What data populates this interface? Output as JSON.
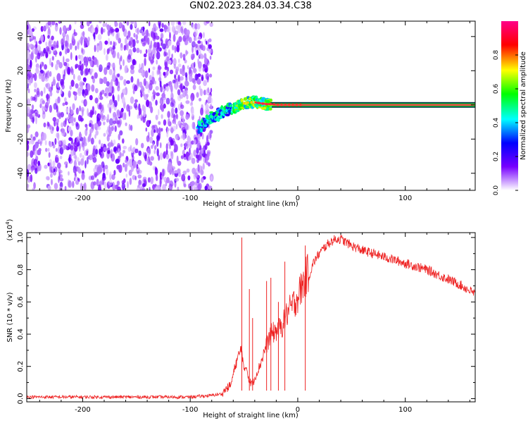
{
  "title": "GN02.2023.284.03.34.C38",
  "chart_data": [
    {
      "type": "heatmap",
      "name": "spectrogram",
      "xlabel": "Height of straight line (km)",
      "ylabel": "Frequency (Hz)",
      "xlim": [
        -252,
        165
      ],
      "ylim": [
        -50,
        49
      ],
      "xticks": [
        -200,
        -100,
        0,
        100
      ],
      "xtick_labels": [
        "-200",
        "-100",
        "0",
        "100"
      ],
      "yticks": [
        -40,
        -20,
        0,
        20,
        40
      ],
      "ytick_labels": [
        "-40",
        "-20",
        "0",
        "20",
        "40"
      ],
      "noise_region_x": [
        -252,
        -80
      ],
      "signal_track": {
        "x": [
          -90,
          -85,
          -80,
          -75,
          -70,
          -65,
          -60,
          -55,
          -50,
          -45,
          -40,
          -35,
          -30,
          -25,
          -20,
          -10,
          0,
          20,
          50,
          100,
          165
        ],
        "y": [
          -13,
          -10,
          -7,
          -6,
          -4,
          -3,
          -2,
          -1,
          1,
          1.5,
          1.5,
          1,
          0.5,
          0.5,
          0,
          0,
          0,
          0,
          0,
          0,
          0
        ]
      },
      "colorbar": {
        "label": "Normalized spectral amplitude",
        "range": [
          0,
          1
        ],
        "ticks": [
          0.0,
          0.2,
          0.4,
          0.6,
          0.8
        ],
        "tick_labels": [
          "0.0",
          "0.2",
          "0.4",
          "0.6",
          "0.8"
        ],
        "colors": [
          "#ffffff",
          "#7700ff",
          "#0000ff",
          "#00ffff",
          "#00ff00",
          "#ffff00",
          "#ff0000",
          "#ff0088"
        ]
      }
    },
    {
      "type": "line",
      "name": "snr",
      "xlabel": "Height of straight line (km)",
      "ylabel": "SNR (10 * v/v)",
      "scale_label": "(x10",
      "scale_exponent": "4",
      "scale_close": ")",
      "xlim": [
        -252,
        165
      ],
      "ylim": [
        -0.02,
        1.03
      ],
      "xticks": [
        -200,
        -100,
        0,
        100
      ],
      "xtick_labels": [
        "-200",
        "-100",
        "0",
        "100"
      ],
      "yticks": [
        0.0,
        0.2,
        0.4,
        0.6,
        0.8,
        1.0
      ],
      "ytick_labels": [
        "0.0",
        "0.2",
        "0.4",
        "0.6",
        "0.8",
        "1.0"
      ],
      "color": "#ee2222",
      "x": [
        -252,
        -200,
        -150,
        -100,
        -80,
        -70,
        -62,
        -58,
        -55,
        -52,
        -50,
        -48,
        -45,
        -42,
        -40,
        -35,
        -30,
        -25,
        -20,
        -15,
        -10,
        -5,
        0,
        5,
        10,
        15,
        20,
        25,
        30,
        35,
        40,
        45,
        50,
        60,
        70,
        80,
        90,
        100,
        110,
        120,
        130,
        140,
        150,
        160,
        165
      ],
      "y": [
        0.01,
        0.01,
        0.01,
        0.01,
        0.02,
        0.03,
        0.08,
        0.2,
        0.25,
        0.3,
        0.15,
        0.2,
        0.1,
        0.08,
        0.12,
        0.2,
        0.3,
        0.38,
        0.4,
        0.42,
        0.5,
        0.55,
        0.6,
        0.68,
        0.75,
        0.85,
        0.9,
        0.94,
        0.97,
        0.99,
        0.99,
        0.97,
        0.95,
        0.92,
        0.9,
        0.88,
        0.86,
        0.84,
        0.82,
        0.8,
        0.77,
        0.74,
        0.71,
        0.67,
        0.65
      ],
      "spikes": [
        {
          "x": -52,
          "y": 1.0
        },
        {
          "x": -45,
          "y": 0.68
        },
        {
          "x": -42,
          "y": 0.5
        },
        {
          "x": -29,
          "y": 0.73
        },
        {
          "x": -25,
          "y": 0.75
        },
        {
          "x": -18,
          "y": 0.6
        },
        {
          "x": -12,
          "y": 0.85
        },
        {
          "x": 7,
          "y": 0.95
        }
      ]
    }
  ]
}
